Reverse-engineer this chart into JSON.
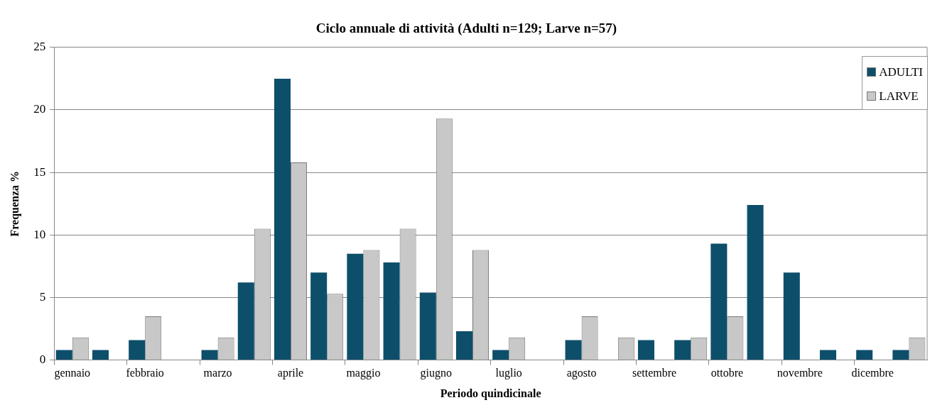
{
  "chart_data": {
    "type": "bar",
    "title": "Ciclo annuale di attività (Adulti n=129; Larve n=57)",
    "xlabel": "Periodo quindicinale",
    "ylabel": "Frequenza %",
    "categories": [
      "gennaio",
      null,
      "febbraio",
      null,
      "marzo",
      null,
      "aprile",
      null,
      "maggio",
      null,
      "giugno",
      null,
      "luglio",
      null,
      "agosto",
      null,
      "settembre",
      null,
      "ottobre",
      null,
      "novembre",
      null,
      "dicembre",
      null
    ],
    "series": [
      {
        "name": "ADULTI",
        "color": "#0d4f6b",
        "values": [
          0.8,
          0.8,
          1.6,
          0,
          0.8,
          6.2,
          22.5,
          7.0,
          8.5,
          7.8,
          5.4,
          2.3,
          0.8,
          0,
          1.6,
          0,
          1.6,
          1.6,
          9.3,
          12.4,
          7.0,
          0.8,
          0.8,
          0.8
        ]
      },
      {
        "name": "LARVE",
        "color": "#c8c8c8",
        "values": [
          1.8,
          0,
          3.5,
          0,
          1.8,
          10.5,
          15.8,
          5.3,
          8.8,
          10.5,
          19.3,
          8.8,
          1.8,
          0,
          3.5,
          1.8,
          0,
          1.8,
          3.5,
          0,
          0,
          0,
          0,
          1.8
        ]
      }
    ],
    "ylim": [
      0,
      25
    ],
    "yticks": [
      0,
      5,
      10,
      15,
      20,
      25
    ],
    "grid": "y",
    "legend": "top right"
  }
}
